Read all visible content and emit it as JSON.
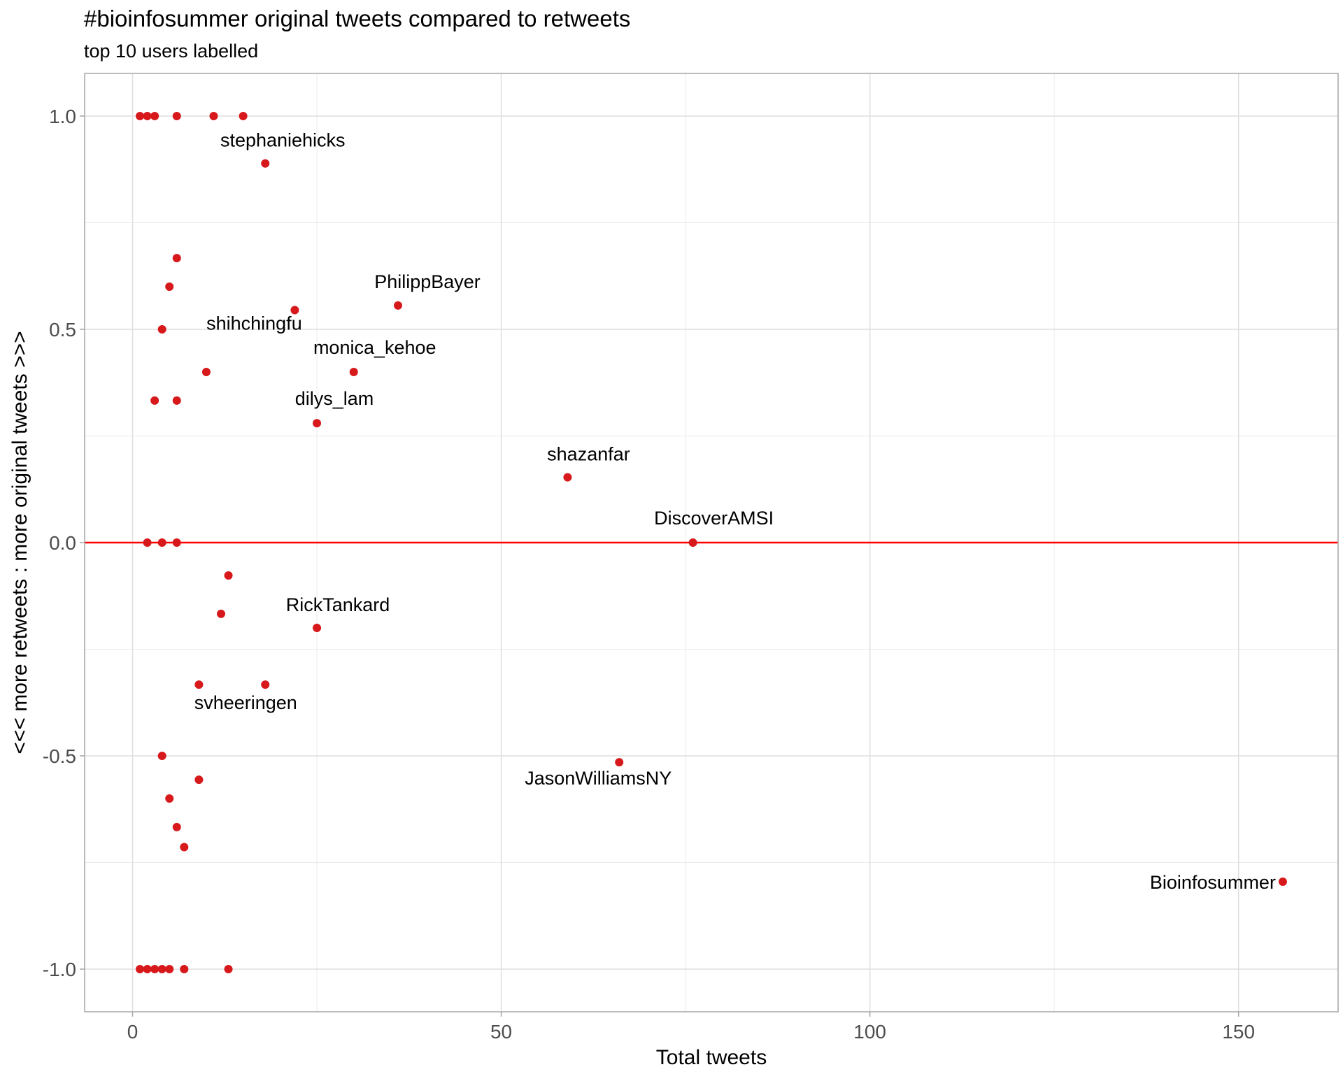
{
  "chart_data": {
    "type": "scatter",
    "title": "#bioinfosummer original tweets compared to retweets",
    "subtitle": "top 10 users labelled",
    "xlabel": "Total tweets",
    "ylabel": "<<< more retweets : more original tweets >>>",
    "xlim": [
      -6.5,
      163.5
    ],
    "ylim": [
      -1.1,
      1.1
    ],
    "x_ticks": [
      0,
      50,
      100,
      150
    ],
    "x_tick_labels": [
      "0",
      "50",
      "100",
      "150"
    ],
    "y_ticks": [
      1.0,
      0.5,
      0.0,
      -0.5,
      -1.0
    ],
    "y_tick_labels": [
      "1.0",
      "0.5",
      "0.0",
      "-0.5",
      "-1.0"
    ],
    "grid": true,
    "reference_line": {
      "y": 0,
      "color": "#ff0000"
    },
    "point_color": "#d7191c",
    "points": [
      {
        "x": 1,
        "y": 1.0
      },
      {
        "x": 2,
        "y": 1.0
      },
      {
        "x": 3,
        "y": 1.0
      },
      {
        "x": 6,
        "y": 1.0
      },
      {
        "x": 11,
        "y": 1.0
      },
      {
        "x": 15,
        "y": 1.0
      },
      {
        "x": 18,
        "y": 0.889,
        "label": "stephaniehicks"
      },
      {
        "x": 6,
        "y": 0.667
      },
      {
        "x": 5,
        "y": 0.6
      },
      {
        "x": 22,
        "y": 0.545,
        "label": "shihchingfu"
      },
      {
        "x": 36,
        "y": 0.556,
        "label": "PhilippBayer"
      },
      {
        "x": 4,
        "y": 0.5
      },
      {
        "x": 10,
        "y": 0.4
      },
      {
        "x": 30,
        "y": 0.4,
        "label": "monica_kehoe"
      },
      {
        "x": 3,
        "y": 0.333
      },
      {
        "x": 6,
        "y": 0.333
      },
      {
        "x": 25,
        "y": 0.28,
        "label": "dilys_lam"
      },
      {
        "x": 59,
        "y": 0.153,
        "label": "shazanfar"
      },
      {
        "x": 2,
        "y": 0.0
      },
      {
        "x": 4,
        "y": 0.0
      },
      {
        "x": 6,
        "y": 0.0
      },
      {
        "x": 76,
        "y": 0.0,
        "label": "DiscoverAMSI"
      },
      {
        "x": 13,
        "y": -0.077
      },
      {
        "x": 12,
        "y": -0.167
      },
      {
        "x": 25,
        "y": -0.2,
        "label": "RickTankard"
      },
      {
        "x": 9,
        "y": -0.333
      },
      {
        "x": 18,
        "y": -0.333,
        "label": "svheeringen"
      },
      {
        "x": 4,
        "y": -0.5
      },
      {
        "x": 66,
        "y": -0.515,
        "label": "JasonWilliamsNY"
      },
      {
        "x": 9,
        "y": -0.556
      },
      {
        "x": 5,
        "y": -0.6
      },
      {
        "x": 6,
        "y": -0.667
      },
      {
        "x": 7,
        "y": -0.714
      },
      {
        "x": 156,
        "y": -0.795,
        "label": "Bioinfosummer"
      },
      {
        "x": 1,
        "y": -1.0
      },
      {
        "x": 2,
        "y": -1.0
      },
      {
        "x": 3,
        "y": -1.0
      },
      {
        "x": 4,
        "y": -1.0
      },
      {
        "x": 5,
        "y": -1.0
      },
      {
        "x": 7,
        "y": -1.0
      },
      {
        "x": 13,
        "y": -1.0
      }
    ]
  }
}
